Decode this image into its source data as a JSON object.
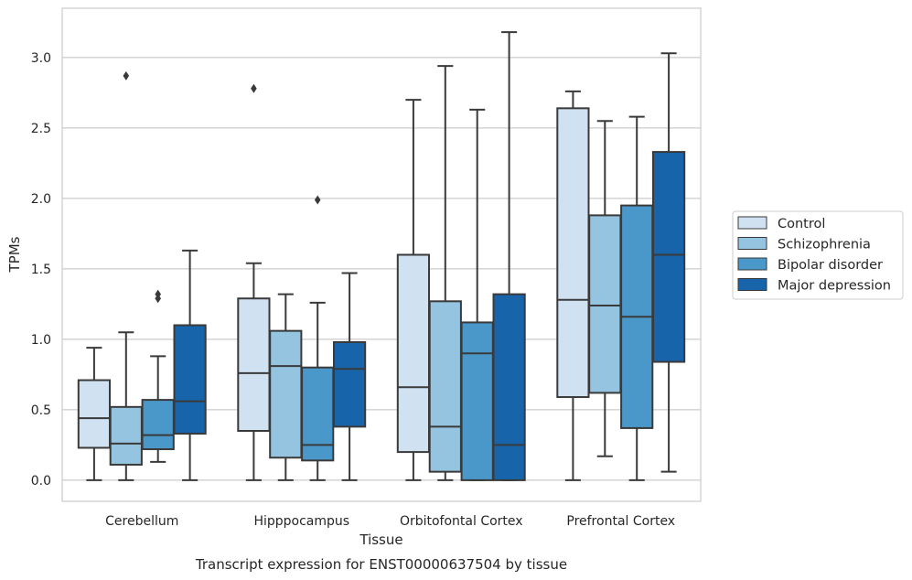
{
  "chart_data": {
    "type": "boxplot",
    "title": "",
    "caption": "Transcript expression for ENST00000637504 by tissue",
    "xlabel": "Tissue",
    "ylabel": "TPMs",
    "ylim": [
      -0.15,
      3.35
    ],
    "yticks": [
      0.0,
      0.5,
      1.0,
      1.5,
      2.0,
      2.5,
      3.0
    ],
    "ytick_labels": [
      "0.0",
      "0.5",
      "1.0",
      "1.5",
      "2.0",
      "2.5",
      "3.0"
    ],
    "grid": "horizontal",
    "legend_position": "right",
    "categories": [
      "Cerebellum",
      "Hipppocampus",
      "Orbitofontal Cortex",
      "Prefrontal Cortex"
    ],
    "series": [
      {
        "name": "Control",
        "color": "#d0e1f2",
        "boxes": [
          {
            "whislo": 0.0,
            "q1": 0.23,
            "med": 0.44,
            "q3": 0.71,
            "whishi": 0.94,
            "fliers": []
          },
          {
            "whislo": 0.0,
            "q1": 0.35,
            "med": 0.76,
            "q3": 1.29,
            "whishi": 1.54,
            "fliers": [
              2.78
            ]
          },
          {
            "whislo": 0.0,
            "q1": 0.2,
            "med": 0.66,
            "q3": 1.6,
            "whishi": 2.7,
            "fliers": []
          },
          {
            "whislo": 0.0,
            "q1": 0.59,
            "med": 1.28,
            "q3": 2.64,
            "whishi": 2.76,
            "fliers": []
          }
        ]
      },
      {
        "name": "Schizophrenia",
        "color": "#94c4df",
        "boxes": [
          {
            "whislo": 0.0,
            "q1": 0.11,
            "med": 0.26,
            "q3": 0.52,
            "whishi": 1.05,
            "fliers": [
              2.87
            ]
          },
          {
            "whislo": 0.0,
            "q1": 0.16,
            "med": 0.81,
            "q3": 1.06,
            "whishi": 1.32,
            "fliers": []
          },
          {
            "whislo": 0.0,
            "q1": 0.06,
            "med": 0.38,
            "q3": 1.27,
            "whishi": 2.94,
            "fliers": []
          },
          {
            "whislo": 0.17,
            "q1": 0.62,
            "med": 1.24,
            "q3": 1.88,
            "whishi": 2.55,
            "fliers": []
          }
        ]
      },
      {
        "name": "Bipolar disorder",
        "color": "#4a98c9",
        "boxes": [
          {
            "whislo": 0.13,
            "q1": 0.22,
            "med": 0.32,
            "q3": 0.57,
            "whishi": 0.88,
            "fliers": [
              1.29,
              1.32
            ]
          },
          {
            "whislo": 0.0,
            "q1": 0.14,
            "med": 0.25,
            "q3": 0.8,
            "whishi": 1.26,
            "fliers": [
              1.99
            ]
          },
          {
            "whislo": 0.0,
            "q1": 0.0,
            "med": 0.9,
            "q3": 1.12,
            "whishi": 2.63,
            "fliers": []
          },
          {
            "whislo": 0.0,
            "q1": 0.37,
            "med": 1.16,
            "q3": 1.95,
            "whishi": 2.58,
            "fliers": []
          }
        ]
      },
      {
        "name": "Major depression",
        "color": "#1764ab",
        "boxes": [
          {
            "whislo": 0.0,
            "q1": 0.33,
            "med": 0.56,
            "q3": 1.1,
            "whishi": 1.63,
            "fliers": []
          },
          {
            "whislo": 0.0,
            "q1": 0.38,
            "med": 0.79,
            "q3": 0.98,
            "whishi": 1.47,
            "fliers": []
          },
          {
            "whislo": 0.0,
            "q1": 0.0,
            "med": 0.25,
            "q3": 1.32,
            "whishi": 3.18,
            "fliers": []
          },
          {
            "whislo": 0.06,
            "q1": 0.84,
            "med": 1.6,
            "q3": 2.33,
            "whishi": 3.03,
            "fliers": []
          }
        ]
      }
    ],
    "colors": {
      "grid": "#cccccc",
      "frame": "#cccccc",
      "stroke": "#3a3a3a",
      "legend_border": "#cccccc"
    }
  }
}
